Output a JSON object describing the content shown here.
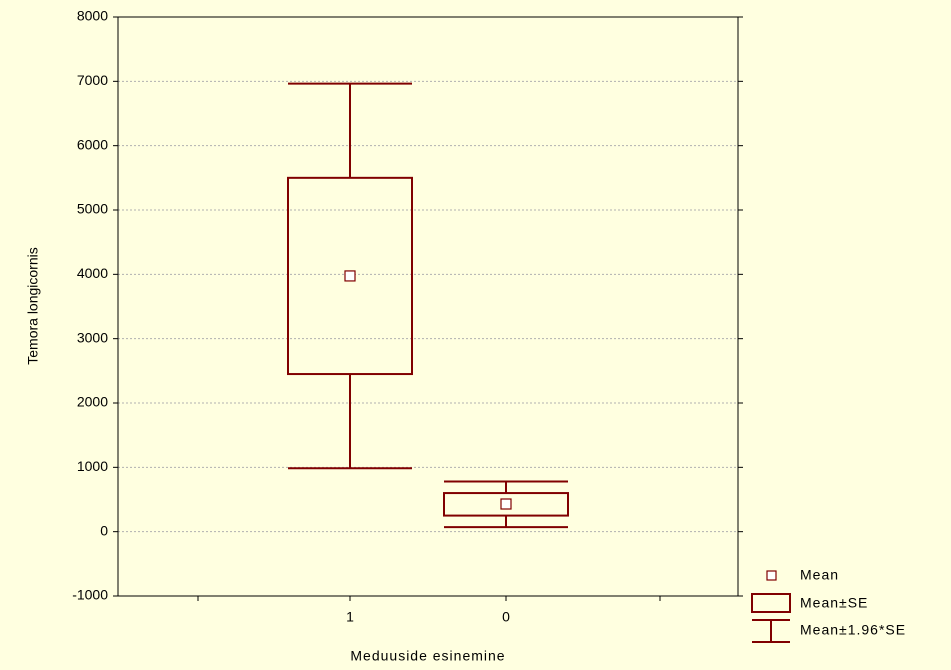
{
  "chart_data": {
    "type": "box",
    "x_label": "Meduuside esinemine",
    "y_label": "Temora longicornis",
    "categories": [
      "1",
      "0"
    ],
    "color": "#800000",
    "series": [
      {
        "name": "Mean",
        "values": [
          3975,
          430
        ]
      },
      {
        "name": "Mean±SE",
        "low": [
          2450,
          250
        ],
        "high": [
          5500,
          600
        ]
      },
      {
        "name": "Mean±1.96*SE",
        "low": [
          986,
          70
        ],
        "high": [
          6964,
          780
        ]
      }
    ],
    "ylim": [
      -1000,
      8000
    ],
    "yticks": [
      -1000,
      0,
      1000,
      2000,
      3000,
      4000,
      5000,
      6000,
      7000,
      8000
    ],
    "grid": true
  }
}
